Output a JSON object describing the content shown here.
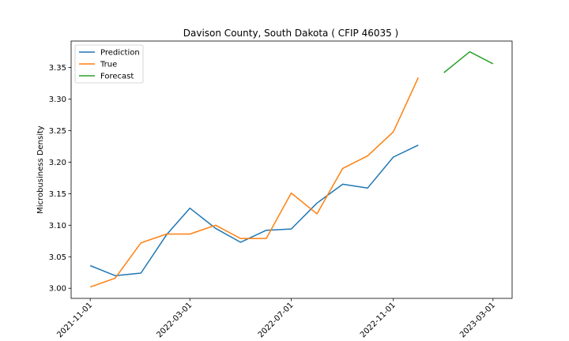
{
  "chart_data": {
    "type": "line",
    "title": "Davison County, South Dakota ( CFIP 46035 )",
    "xlabel": "",
    "ylabel": "Microbusiness Density",
    "x_tick_labels": [
      "2021-11-01",
      "2022-03-01",
      "2022-07-01",
      "2022-11-01",
      "2023-03-01"
    ],
    "x_tick_dates": [
      "2021-11-01",
      "2022-03-01",
      "2022-07-01",
      "2022-11-01",
      "2023-03-01"
    ],
    "y_ticks": [
      3.0,
      3.05,
      3.1,
      3.15,
      3.2,
      3.25,
      3.3,
      3.35
    ],
    "y_tick_labels": [
      "3.00",
      "3.05",
      "3.10",
      "3.15",
      "3.20",
      "3.25",
      "3.30",
      "3.35"
    ],
    "xlim": [
      "2021-10-09",
      "2023-03-24"
    ],
    "ylim": [
      2.984,
      3.392
    ],
    "grid": false,
    "legend_position": "top-left",
    "series": [
      {
        "name": "Prediction",
        "color": "#1f77b4",
        "x": [
          "2021-11-01",
          "2021-12-01",
          "2022-01-01",
          "2022-02-01",
          "2022-03-01",
          "2022-04-01",
          "2022-05-01",
          "2022-06-01",
          "2022-07-01",
          "2022-08-01",
          "2022-09-01",
          "2022-10-01",
          "2022-11-01",
          "2022-12-01"
        ],
        "values": [
          3.036,
          3.02,
          3.024,
          3.085,
          3.127,
          3.095,
          3.073,
          3.092,
          3.094,
          3.135,
          3.165,
          3.159,
          3.208,
          3.227
        ]
      },
      {
        "name": "True",
        "color": "#ff7f0e",
        "x": [
          "2021-11-01",
          "2021-12-01",
          "2022-01-01",
          "2022-02-01",
          "2022-03-01",
          "2022-04-01",
          "2022-05-01",
          "2022-06-01",
          "2022-07-01",
          "2022-08-01",
          "2022-09-01",
          "2022-10-01",
          "2022-11-01",
          "2022-12-01"
        ],
        "values": [
          3.002,
          3.016,
          3.072,
          3.086,
          3.086,
          3.1,
          3.079,
          3.079,
          3.151,
          3.118,
          3.19,
          3.21,
          3.248,
          3.334
        ]
      },
      {
        "name": "Forecast",
        "color": "#2ca02c",
        "x": [
          "2023-01-01",
          "2023-02-01",
          "2023-03-01"
        ],
        "values": [
          3.342,
          3.375,
          3.356
        ]
      }
    ]
  }
}
